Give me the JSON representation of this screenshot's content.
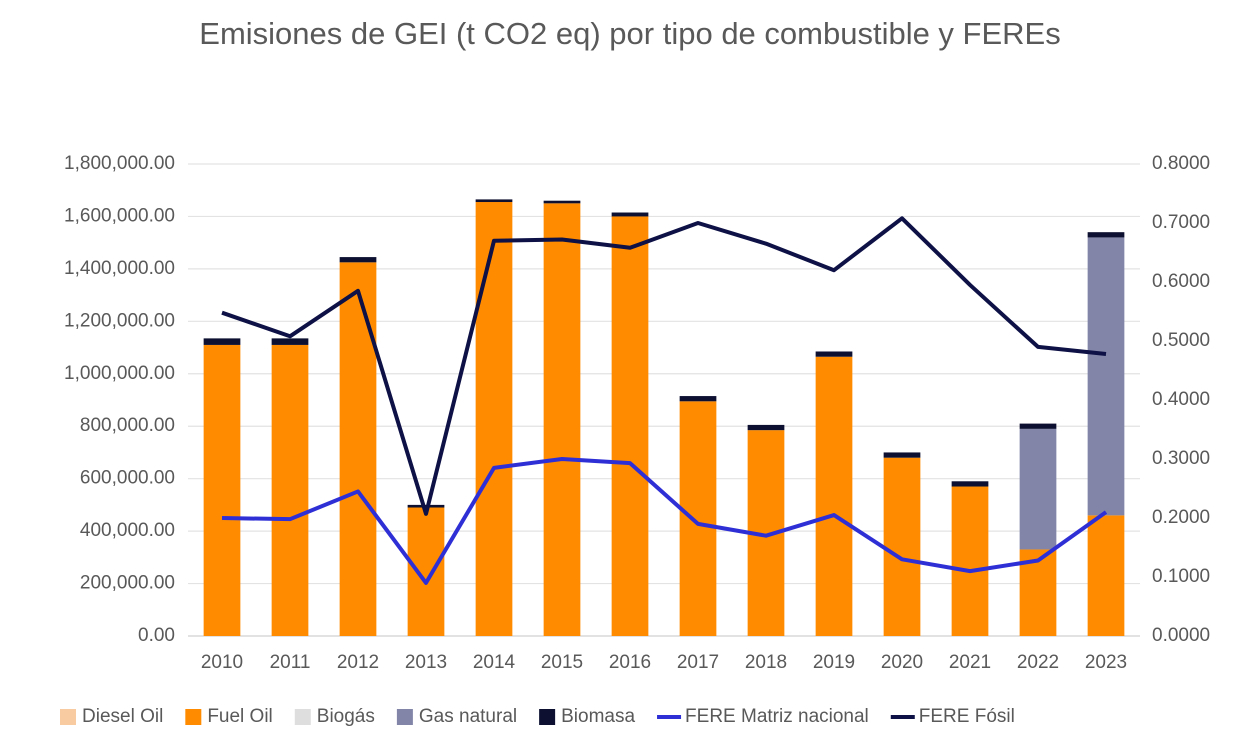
{
  "chart_data": {
    "type": "bar",
    "title": "Emisiones de GEI (t CO2 eq) por tipo de combustible y FEREs",
    "categories": [
      "2010",
      "2011",
      "2012",
      "2013",
      "2014",
      "2015",
      "2016",
      "2017",
      "2018",
      "2019",
      "2020",
      "2021",
      "2022",
      "2023"
    ],
    "stacked": true,
    "series": [
      {
        "name": "Diesel Oil",
        "color": "#f8cba0",
        "values": [
          0,
          0,
          0,
          0,
          0,
          0,
          0,
          0,
          0,
          0,
          0,
          0,
          0,
          0
        ]
      },
      {
        "name": "Fuel Oil",
        "color": "#ff8c00",
        "values": [
          1110000,
          1110000,
          1425000,
          490000,
          1655000,
          1650000,
          1600000,
          895000,
          785000,
          1065000,
          680000,
          570000,
          330000,
          460000
        ]
      },
      {
        "name": "Biogás",
        "color": "#dedede",
        "values": [
          0,
          0,
          0,
          0,
          0,
          0,
          0,
          0,
          0,
          0,
          0,
          0,
          0,
          0
        ]
      },
      {
        "name": "Gas natural",
        "color": "#8385a8",
        "values": [
          0,
          0,
          0,
          0,
          0,
          0,
          0,
          0,
          0,
          0,
          0,
          0,
          460000,
          1060000
        ]
      },
      {
        "name": "Biomasa",
        "color": "#0d1030",
        "values": [
          25000,
          25000,
          20000,
          10000,
          10000,
          10000,
          15000,
          20000,
          20000,
          20000,
          20000,
          20000,
          20000,
          20000
        ]
      },
      {
        "name": "FERE Matriz nacional",
        "type": "line",
        "axis": "y2",
        "color": "#2f2fd6",
        "values": [
          0.2,
          0.198,
          0.245,
          0.09,
          0.285,
          0.3,
          0.293,
          0.19,
          0.17,
          0.205,
          0.13,
          0.11,
          0.128,
          0.21
        ]
      },
      {
        "name": "FERE Fósil",
        "type": "line",
        "axis": "y2",
        "color": "#0d1145",
        "values": [
          0.548,
          0.508,
          0.585,
          0.207,
          0.67,
          0.672,
          0.658,
          0.7,
          0.665,
          0.62,
          0.708,
          0.595,
          0.49,
          0.478
        ]
      }
    ],
    "ylim": [
      0,
      1800000
    ],
    "yticks": [
      {
        "value": 0,
        "label": "0.00"
      },
      {
        "value": 200000,
        "label": "200,000.00"
      },
      {
        "value": 400000,
        "label": "400,000.00"
      },
      {
        "value": 600000,
        "label": "600,000.00"
      },
      {
        "value": 800000,
        "label": "800,000.00"
      },
      {
        "value": 1000000,
        "label": "1,000,000.00"
      },
      {
        "value": 1200000,
        "label": "1,200,000.00"
      },
      {
        "value": 1400000,
        "label": "1,400,000.00"
      },
      {
        "value": 1600000,
        "label": "1,600,000.00"
      },
      {
        "value": 1800000,
        "label": "1,800,000.00"
      }
    ],
    "y2lim": [
      0,
      0.8
    ],
    "y2ticks": [
      {
        "value": 0,
        "label": "0.0000"
      },
      {
        "value": 0.1,
        "label": "0.1000"
      },
      {
        "value": 0.2,
        "label": "0.2000"
      },
      {
        "value": 0.3,
        "label": "0.3000"
      },
      {
        "value": 0.4,
        "label": "0.4000"
      },
      {
        "value": 0.5,
        "label": "0.5000"
      },
      {
        "value": 0.6,
        "label": "0.6000"
      },
      {
        "value": 0.7,
        "label": "0.7000"
      },
      {
        "value": 0.8,
        "label": "0.8000"
      }
    ],
    "grid": true,
    "legend": "bottom"
  }
}
